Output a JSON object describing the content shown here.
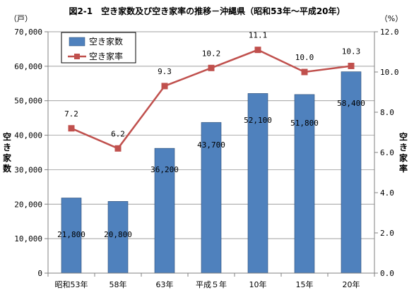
{
  "chart_data": {
    "type": "bar+line",
    "title": "図2-1　空き家数及び空き家率の推移－沖縄県（昭和53年～平成20年）",
    "categories": [
      "昭和53年",
      "58年",
      "63年",
      "平成５年",
      "10年",
      "15年",
      "20年"
    ],
    "series": [
      {
        "name": "空き家数",
        "type": "bar",
        "axis": "left",
        "color": "#4f81bd",
        "values": [
          21800,
          20800,
          36200,
          43700,
          52100,
          51800,
          58400
        ],
        "labels": [
          "21,800",
          "20,800",
          "36,200",
          "43,700",
          "52,100",
          "51,800",
          "58,400"
        ]
      },
      {
        "name": "空き家率",
        "type": "line",
        "axis": "right",
        "color": "#c0504d",
        "values": [
          7.2,
          6.2,
          9.3,
          10.2,
          11.1,
          10.0,
          10.3
        ],
        "labels": [
          "7.2",
          "6.2",
          "9.3",
          "10.2",
          "11.1",
          "10.0",
          "10.3"
        ]
      }
    ],
    "left_axis": {
      "label": "空き家数",
      "unit": "（戸）",
      "ylim": [
        0,
        70000
      ],
      "ticks": [
        "0",
        "10,000",
        "20,000",
        "30,000",
        "40,000",
        "50,000",
        "60,000",
        "70,000"
      ]
    },
    "right_axis": {
      "label": "空き家率",
      "unit": "（%）",
      "ylim": [
        0,
        12
      ],
      "ticks": [
        "0.0",
        "2.0",
        "4.0",
        "6.0",
        "8.0",
        "10.0",
        "12.0"
      ]
    },
    "grid": "horizontal",
    "legend_position": "top-left"
  }
}
